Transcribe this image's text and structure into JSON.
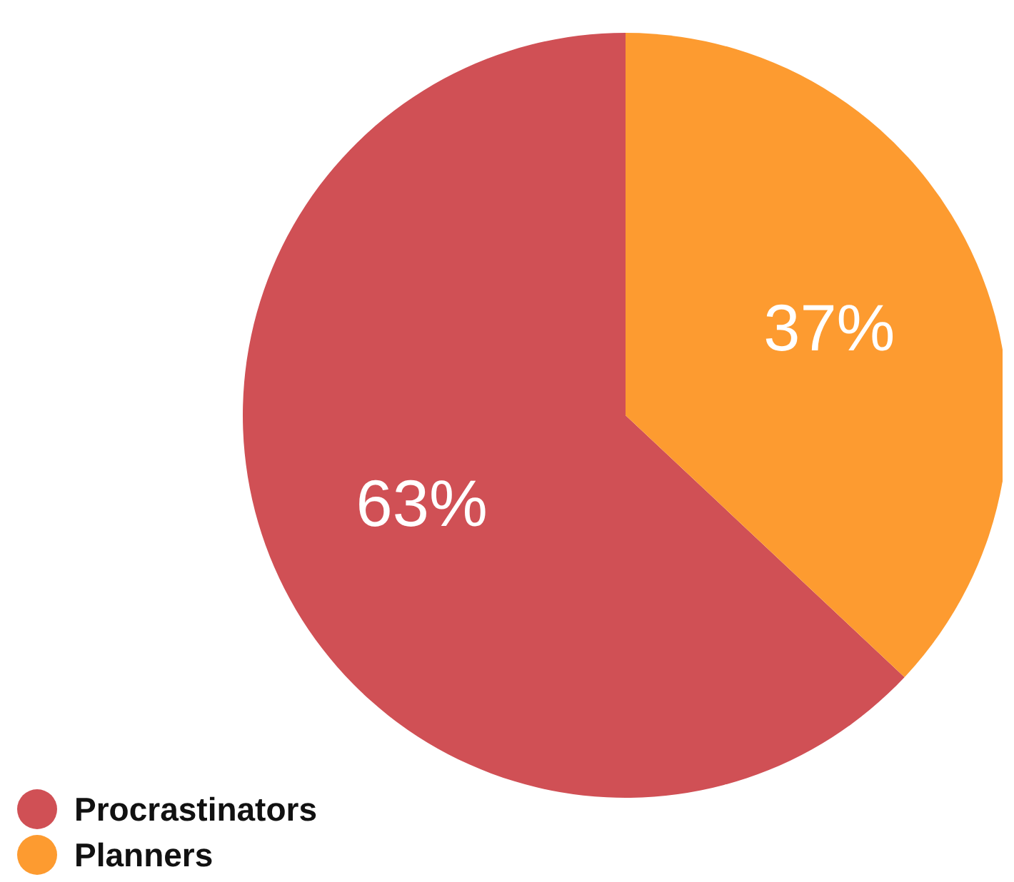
{
  "chart_data": {
    "type": "pie",
    "categories": [
      "Procrastinators",
      "Planners"
    ],
    "values": [
      63,
      37
    ],
    "colors": [
      "#d05055",
      "#fd9b30"
    ],
    "value_labels": [
      "63%",
      "37%"
    ],
    "legend": "bottom left"
  }
}
